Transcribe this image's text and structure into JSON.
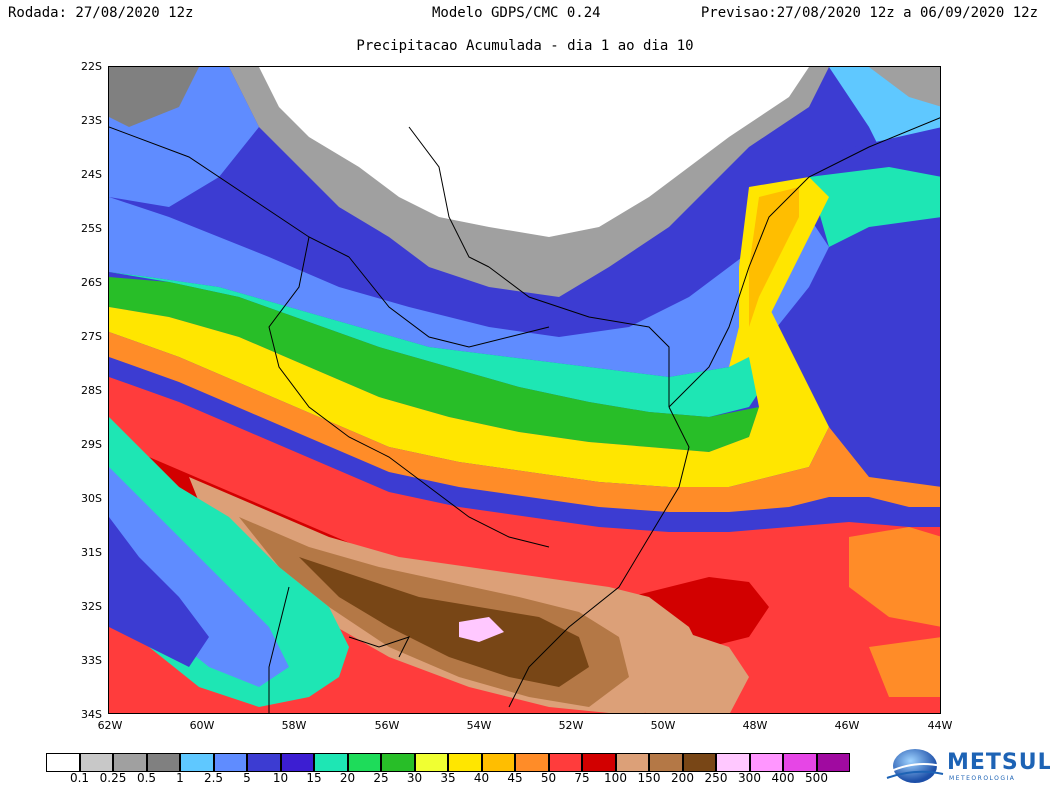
{
  "header": {
    "rodada": "Rodada: 27/08/2020 12z",
    "modelo": "Modelo GDPS/CMC 0.24",
    "previsao": "Previsao:27/08/2020 12z a 06/09/2020 12z",
    "subtitle": "Precipitacao Acumulada - dia 1 ao dia 10"
  },
  "map": {
    "lat_labels": [
      "22S",
      "23S",
      "24S",
      "25S",
      "26S",
      "27S",
      "28S",
      "29S",
      "30S",
      "31S",
      "32S",
      "33S",
      "34S"
    ],
    "lon_labels": [
      "62W",
      "60W",
      "58W",
      "56W",
      "54W",
      "52W",
      "50W",
      "48W",
      "46W",
      "44W"
    ]
  },
  "legend": {
    "labels": [
      "0.1",
      "0.25",
      "0.5",
      "1",
      "2.5",
      "5",
      "10",
      "15",
      "20",
      "25",
      "30",
      "35",
      "40",
      "45",
      "50",
      "75",
      "100",
      "150",
      "200",
      "250",
      "300",
      "400",
      "500"
    ],
    "colors": [
      "#ffffff",
      "#c8c8c8",
      "#a0a0a0",
      "#808080",
      "#5fc8ff",
      "#5f8cff",
      "#3c3cd2",
      "#3c1ed2",
      "#1ee6b4",
      "#1edc5a",
      "#28be28",
      "#f0ff32",
      "#ffe600",
      "#ffbe00",
      "#ff8c28",
      "#ff3c3c",
      "#d20000",
      "#dca078",
      "#b47846",
      "#784616",
      "#ffc8ff",
      "#ff96ff",
      "#e646e6",
      "#a00aa0"
    ]
  },
  "logo": {
    "name": "METSUL",
    "sub": "METEOROLOGIA"
  }
}
